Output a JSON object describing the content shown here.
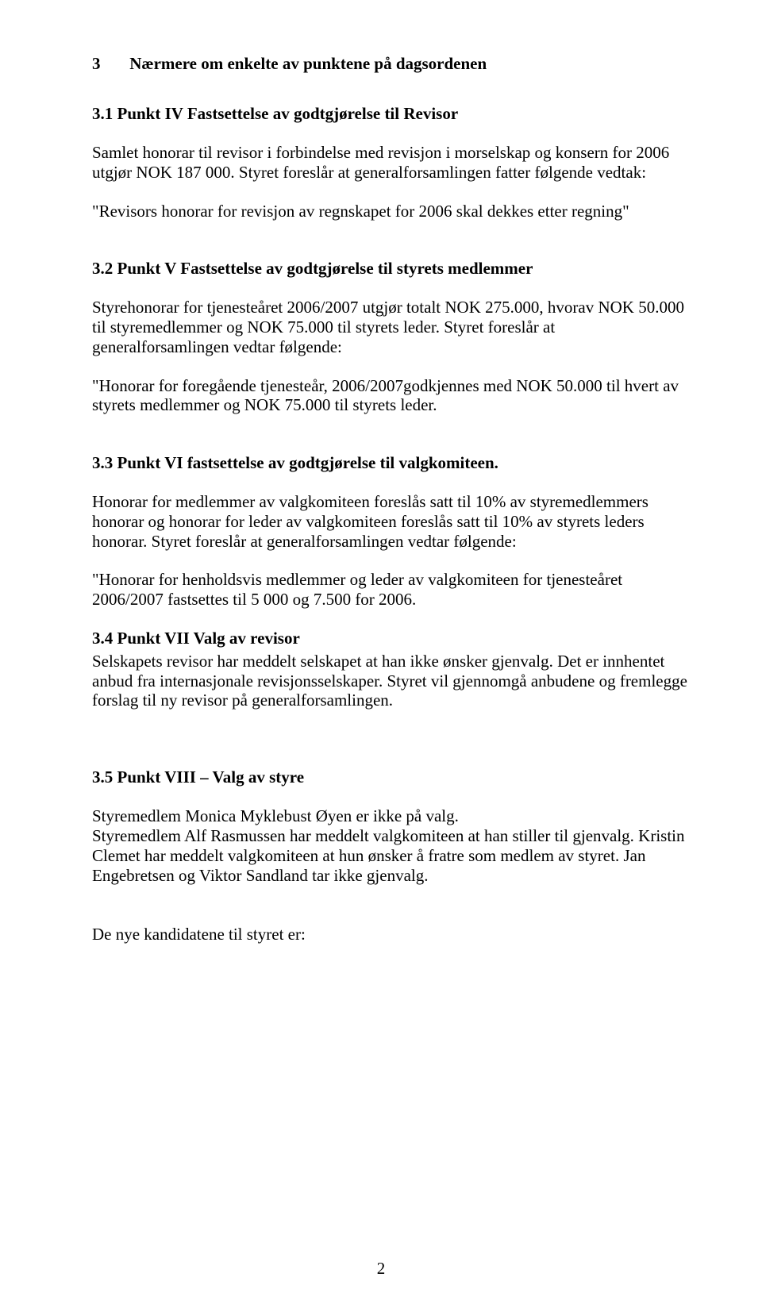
{
  "colors": {
    "background": "#ffffff",
    "text": "#000000"
  },
  "typography": {
    "font_family": "Times New Roman",
    "body_size_pt": 16,
    "heading_weight": "bold",
    "body_weight": "normal",
    "line_height": 1.18
  },
  "page_number": "2",
  "section3": {
    "number": "3",
    "title": "Nærmere om enkelte av punktene på dagsordenen"
  },
  "s31": {
    "title": "3.1 Punkt IV Fastsettelse av godtgjørelse til Revisor",
    "p1": "Samlet honorar til revisor i forbindelse med revisjon i morselskap og konsern for 2006 utgjør NOK 187 000.  Styret foreslår at generalforsamlingen fatter følgende vedtak:",
    "p2": "\"Revisors honorar for revisjon av regnskapet for 2006 skal dekkes etter regning\""
  },
  "s32": {
    "title": "3.2 Punkt V Fastsettelse av godtgjørelse til styrets medlemmer",
    "p1": "Styrehonorar for tjenesteåret 2006/2007 utgjør totalt NOK 275.000, hvorav NOK 50.000 til styremedlemmer og NOK 75.000 til styrets leder. Styret foreslår at generalforsamlingen vedtar følgende:",
    "p2": "\"Honorar for foregående tjenesteår, 2006/2007godkjennes med NOK 50.000 til hvert av  styrets medlemmer og NOK 75.000 til styrets leder."
  },
  "s33": {
    "title": "3.3 Punkt VI fastsettelse av godtgjørelse til valgkomiteen.",
    "p1": "Honorar for medlemmer av valgkomiteen foreslås satt til 10% av styremedlemmers honorar og honorar for leder av valgkomiteen foreslås satt til 10% av styrets leders honorar. Styret foreslår at generalforsamlingen vedtar følgende:",
    "p2": "\"Honorar for henholdsvis medlemmer og leder av valgkomiteen for tjenesteåret 2006/2007 fastsettes til 5 000 og 7.500 for 2006."
  },
  "s34": {
    "title": "3.4 Punkt VII Valg av revisor",
    "p1": "Selskapets revisor har meddelt selskapet at han ikke ønsker gjenvalg. Det er innhentet anbud fra internasjonale revisjonsselskaper. Styret vil gjennomgå anbudene og fremlegge forslag til ny revisor på generalforsamlingen."
  },
  "s35": {
    "title": "3.5 Punkt VIII – Valg av styre",
    "p1": "Styremedlem Monica Myklebust Øyen er ikke på valg.",
    "p2": "Styremedlem Alf Rasmussen har meddelt valgkomiteen at han stiller til gjenvalg. Kristin Clemet har meddelt valgkomiteen at hun ønsker å fratre som medlem av styret. Jan Engebretsen og Viktor Sandland tar ikke gjenvalg.",
    "p3": "De nye kandidatene til styret er:"
  }
}
